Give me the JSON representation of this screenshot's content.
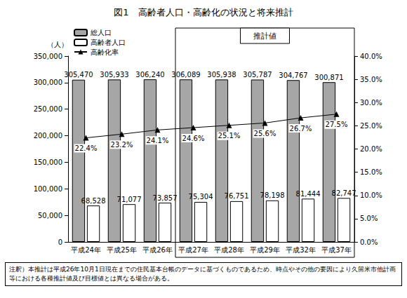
{
  "chart_data": {
    "type": "bar",
    "title": "図1　高齢者人口・高齢化の状況と将来推計",
    "ylabel": "（人）",
    "categories": [
      "平成24年",
      "平成25年",
      "平成26年",
      "平成27年",
      "平成28年",
      "平成29年",
      "平成32年",
      "平成37年"
    ],
    "series": [
      {
        "name": "総人口",
        "type": "bar",
        "color": "#a6a6a6",
        "values": [
          305470,
          305933,
          306240,
          306089,
          305938,
          305787,
          304767,
          300871
        ],
        "value_labels": [
          "305,470",
          "305,933",
          "306,240",
          "306,089",
          "305,938",
          "305,787",
          "304,767",
          "300,871"
        ]
      },
      {
        "name": "高齢者人口",
        "type": "bar",
        "color": "#ffffff",
        "values": [
          68528,
          71077,
          73857,
          75304,
          76751,
          78198,
          81444,
          82747
        ],
        "value_labels": [
          "68,528",
          "71,077",
          "73,857",
          "75,304",
          "76,751",
          "78,198",
          "81,444",
          "82,747"
        ]
      },
      {
        "name": "高齢化率",
        "type": "line",
        "color": "#000000",
        "marker": "triangle",
        "axis": "y2",
        "values": [
          22.4,
          23.2,
          24.1,
          24.6,
          25.1,
          25.6,
          26.7,
          27.5
        ],
        "value_labels": [
          "22.4%",
          "23.2%",
          "24.1%",
          "24.6%",
          "25.1%",
          "25.6%",
          "26.7%",
          "27.5%"
        ]
      }
    ],
    "ylim": [
      0,
      350000
    ],
    "yticks": [
      0,
      {
        "value": 50000,
        "label": "50,000"
      },
      {
        "value": 100000,
        "label": "100,000"
      },
      {
        "value": 150000,
        "label": "150,000"
      },
      {
        "value": 200000,
        "label": "200,000"
      },
      {
        "value": 250000,
        "label": "250,000"
      },
      {
        "value": 300000,
        "label": "300,000"
      },
      {
        "value": 350000,
        "label": "350,000"
      }
    ],
    "y2lim": [
      0,
      40
    ],
    "y2ticks": [
      {
        "value": 0,
        "label": "0.0%"
      },
      {
        "value": 5,
        "label": "5.0%"
      },
      {
        "value": 10,
        "label": "10.0%"
      },
      {
        "value": 15,
        "label": "15.0%"
      },
      {
        "value": 20,
        "label": "20.0%"
      },
      {
        "value": 25,
        "label": "25.0%"
      },
      {
        "value": 30,
        "label": "30.0%"
      },
      {
        "value": 35,
        "label": "35.0%"
      },
      {
        "value": 40,
        "label": "40.0%"
      }
    ],
    "grid": false,
    "legend": "top-left",
    "data_labels": true,
    "annotations": [
      {
        "text": "推計値",
        "from": "平成27年",
        "to": "平成37年"
      }
    ],
    "note": "注釈）本推計は平成26年10月1日現在までの住民基本台帳のデータに基づくものであるため、時点やその他の要因により久留米市他計画等における各種推計値及び目標値とは異なる場合がある。"
  }
}
